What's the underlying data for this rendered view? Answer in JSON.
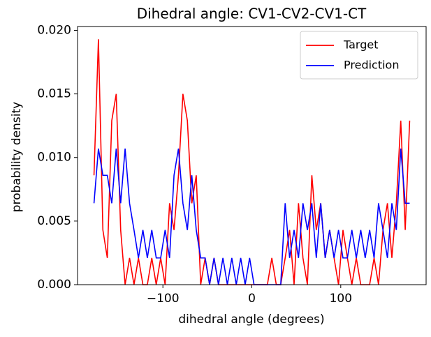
{
  "chart_data": {
    "type": "line",
    "title": "Dihedral angle: CV1-CV2-CV1-CT",
    "x_label": "dihedral angle (degrees)",
    "y_label": "probability density",
    "x": [
      -177.5,
      -172.5,
      -167.5,
      -162.5,
      -157.5,
      -152.5,
      -147.5,
      -142.5,
      -137.5,
      -132.5,
      -127.5,
      -122.5,
      -117.5,
      -112.5,
      -107.5,
      -102.5,
      -97.5,
      -92.5,
      -87.5,
      -82.5,
      -77.5,
      -72.5,
      -67.5,
      -62.5,
      -57.5,
      -52.5,
      -47.5,
      -42.5,
      -37.5,
      -32.5,
      -27.5,
      -22.5,
      -17.5,
      -12.5,
      -7.5,
      -2.5,
      2.5,
      7.5,
      12.5,
      17.5,
      22.5,
      27.5,
      32.5,
      37.5,
      42.5,
      47.5,
      52.5,
      57.5,
      62.5,
      67.5,
      72.5,
      77.5,
      82.5,
      87.5,
      92.5,
      97.5,
      102.5,
      107.5,
      112.5,
      117.5,
      122.5,
      127.5,
      132.5,
      137.5,
      142.5,
      147.5,
      152.5,
      157.5,
      162.5,
      167.5,
      172.5,
      177.5
    ],
    "series": [
      {
        "name": "Target",
        "color": "#ff0000",
        "values": [
          0.0086,
          0.0193,
          0.0043,
          0.0021,
          0.0129,
          0.015,
          0.0043,
          0,
          0.0021,
          0,
          0.0021,
          0,
          0,
          0.0021,
          0,
          0.0021,
          0,
          0.0064,
          0.0043,
          0.0086,
          0.015,
          0.0129,
          0.0064,
          0.0086,
          0,
          0.0021,
          0,
          0.0021,
          0,
          0,
          0,
          0,
          0,
          0,
          0,
          0,
          0,
          0,
          0,
          0,
          0.0021,
          0,
          0,
          0.0021,
          0.0043,
          0,
          0.0064,
          0.0021,
          0,
          0.0086,
          0.0043,
          0.0064,
          0.0021,
          0.0043,
          0.0021,
          0,
          0.0043,
          0.0021,
          0,
          0.0021,
          0,
          0,
          0,
          0.0021,
          0,
          0.0043,
          0.0064,
          0.0021,
          0.0064,
          0.0129,
          0.0043,
          0.0129
        ]
      },
      {
        "name": "Prediction",
        "color": "#0000ff",
        "values": [
          0.0064,
          0.0107,
          0.0086,
          0.0086,
          0.0064,
          0.0107,
          0.0064,
          0.0107,
          0.0064,
          0.0043,
          0.0021,
          0.0043,
          0.0021,
          0.0043,
          0.0021,
          0.0021,
          0.0043,
          0.0021,
          0.0086,
          0.0107,
          0.0064,
          0.0043,
          0.0086,
          0.0043,
          0.0021,
          0.0021,
          0,
          0.0021,
          0,
          0.0021,
          0,
          0.0021,
          0,
          0.0021,
          0,
          0.0021,
          0,
          0,
          0,
          0,
          0,
          0,
          0,
          0.0064,
          0.0021,
          0.0043,
          0.0021,
          0.0064,
          0.0043,
          0.0064,
          0.0021,
          0.0064,
          0.0021,
          0.0043,
          0.0021,
          0.0043,
          0.0021,
          0.0021,
          0.0043,
          0.0021,
          0.0043,
          0.0021,
          0.0043,
          0.0021,
          0.0064,
          0.0043,
          0.0021,
          0.0064,
          0.0043,
          0.0107,
          0.0064,
          0.0064
        ]
      }
    ],
    "xlim": [
      -196,
      196
    ],
    "ylim": [
      0,
      0.0203
    ],
    "xticks": [
      {
        "value": -100,
        "label": "−100"
      },
      0,
      100
    ],
    "yticks": [
      {
        "value": 0,
        "label": "0.000"
      },
      {
        "value": 0.005,
        "label": "0.005"
      },
      {
        "value": 0.01,
        "label": "0.010"
      },
      {
        "value": 0.015,
        "label": "0.015"
      },
      {
        "value": 0.02,
        "label": "0.020"
      }
    ],
    "legend": "upper right"
  }
}
